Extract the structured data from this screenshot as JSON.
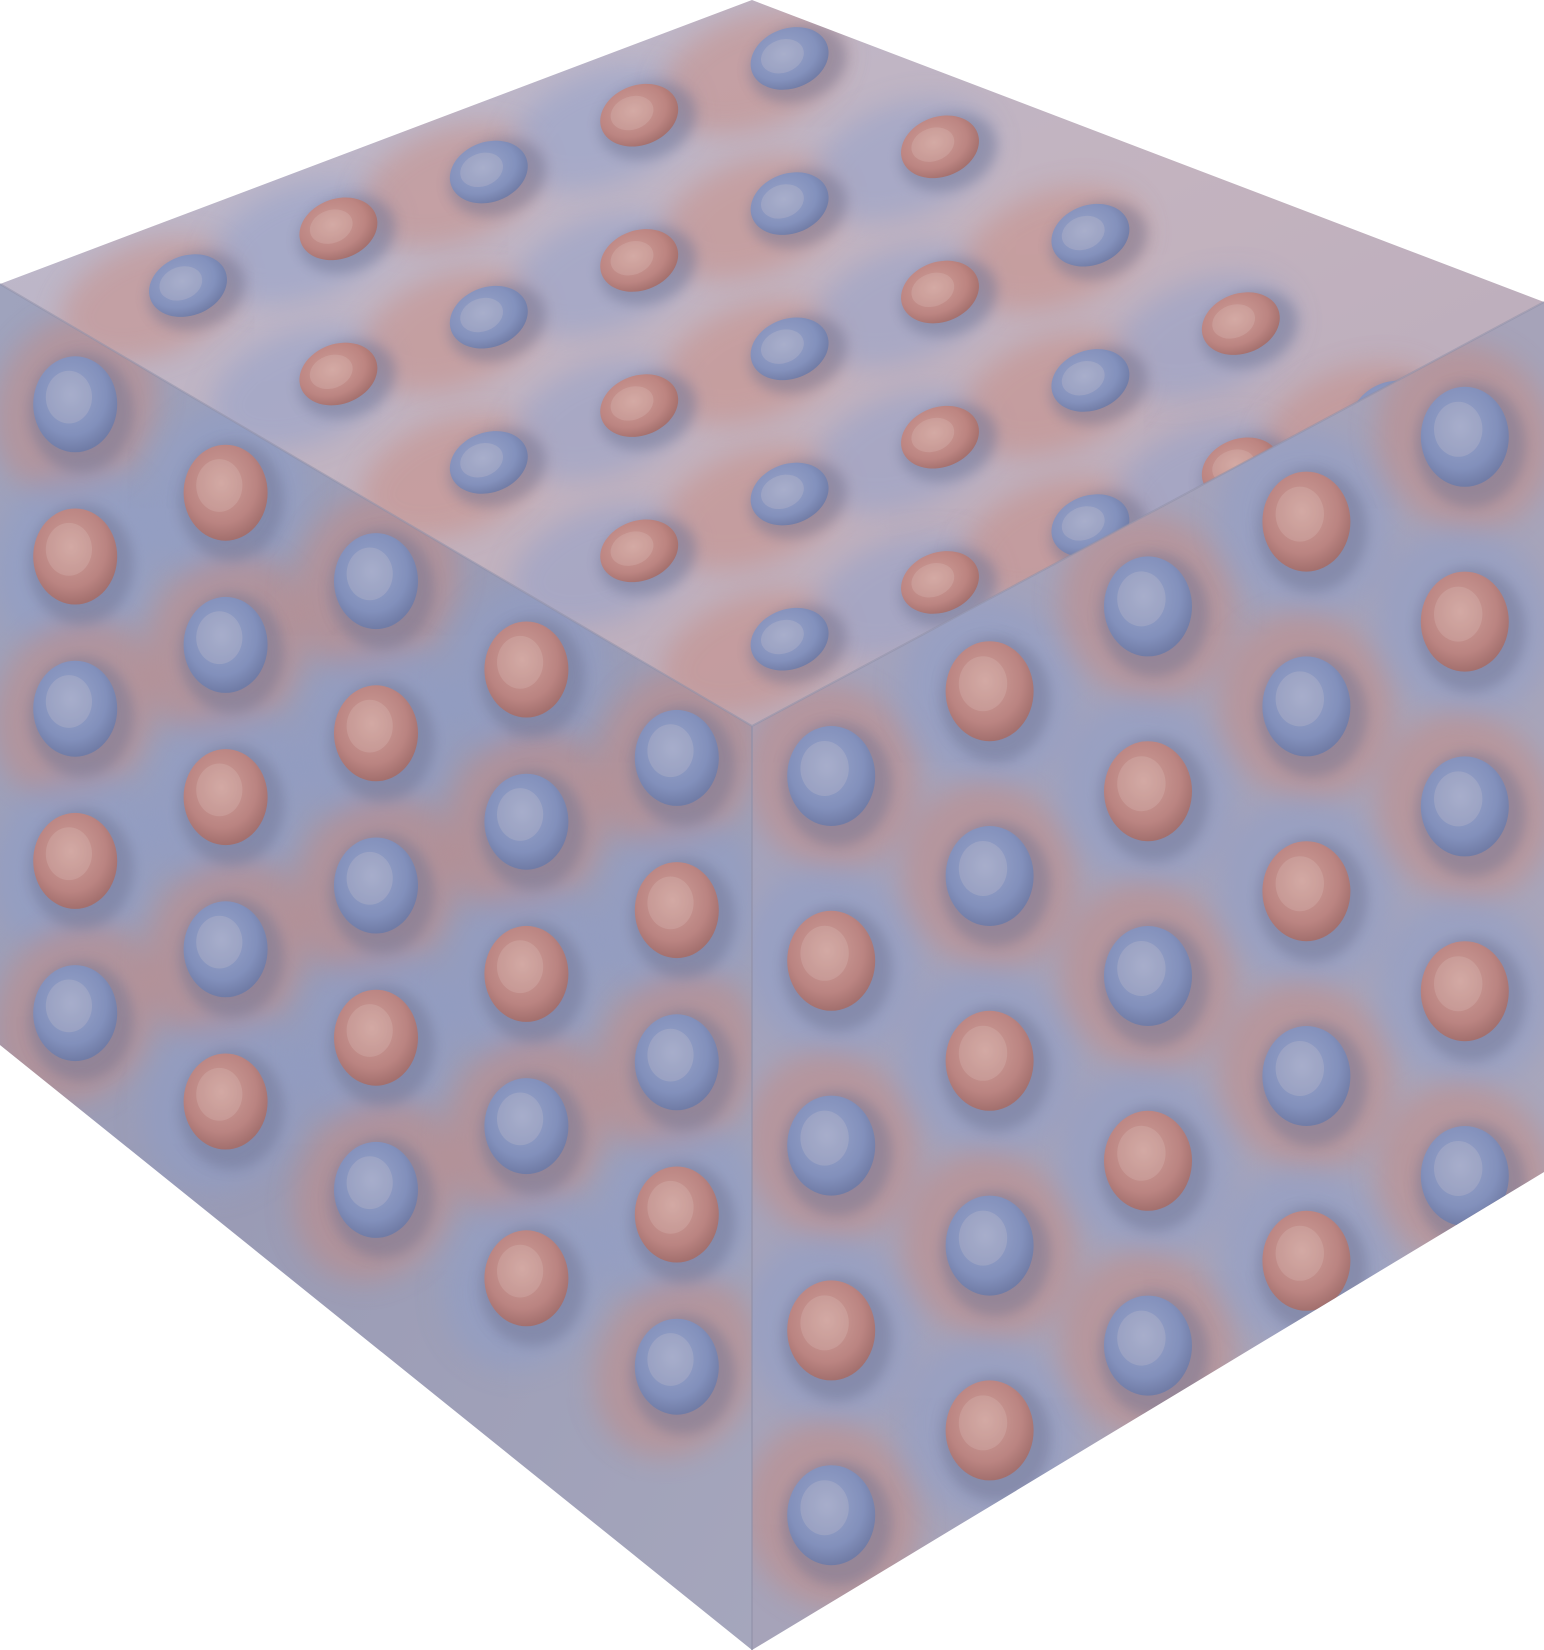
{
  "scene": {
    "subject": "cube-render",
    "background_color": "#ffffff",
    "colors": {
      "blue": "#8a9ccb",
      "blue_deep": "#6f84b8",
      "red": "#c9867a",
      "red_deep": "#b86e63",
      "neutral": "#b6b6c8",
      "shadow": "#6f7392",
      "highlight": "#e7d6d0"
    }
  }
}
